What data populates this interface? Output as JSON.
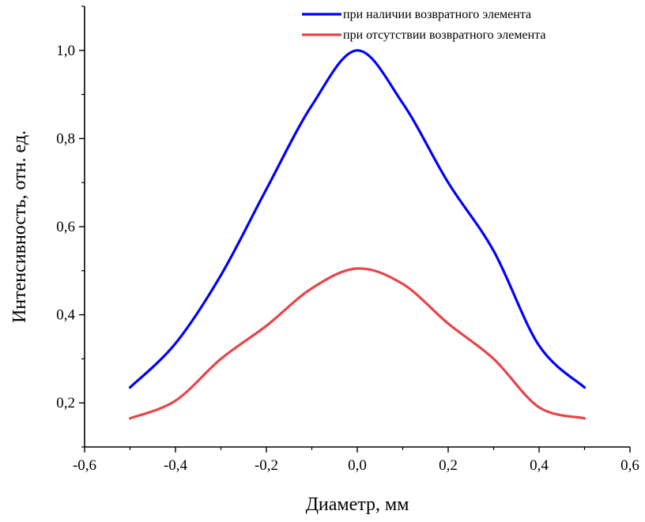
{
  "chart_data": {
    "type": "line",
    "title": "",
    "xlabel": "Диаметр, мм",
    "ylabel": "Интенсивность, отн. ед.",
    "xlim": [
      -0.6,
      0.6
    ],
    "ylim": [
      0.1,
      1.1
    ],
    "x_ticks": [
      -0.6,
      -0.4,
      -0.2,
      0.0,
      0.2,
      0.4,
      0.6
    ],
    "x_tick_labels": [
      "-0,6",
      "-0,4",
      "-0,2",
      "0,0",
      "0,2",
      "0,4",
      "0,6"
    ],
    "y_ticks": [
      0.2,
      0.4,
      0.6,
      0.8,
      1.0
    ],
    "y_tick_labels": [
      "0,2",
      "0,4",
      "0,6",
      "0,8",
      "1,0"
    ],
    "grid": false,
    "legend_position": "top-right",
    "series": [
      {
        "name": "при наличии возвратного элемента",
        "color": "#0000ff",
        "x": [
          -0.5,
          -0.4,
          -0.3,
          -0.2,
          -0.1,
          0.0,
          0.1,
          0.2,
          0.3,
          0.4,
          0.5
        ],
        "y": [
          0.235,
          0.335,
          0.49,
          0.685,
          0.875,
          1.0,
          0.88,
          0.7,
          0.545,
          0.33,
          0.235
        ]
      },
      {
        "name": "при отсутствии возвратного элемента",
        "color": "#e8454a",
        "x": [
          -0.5,
          -0.4,
          -0.3,
          -0.2,
          -0.1,
          0.0,
          0.1,
          0.2,
          0.3,
          0.4,
          0.5
        ],
        "y": [
          0.165,
          0.205,
          0.3,
          0.375,
          0.46,
          0.505,
          0.47,
          0.38,
          0.3,
          0.19,
          0.165
        ]
      }
    ]
  }
}
